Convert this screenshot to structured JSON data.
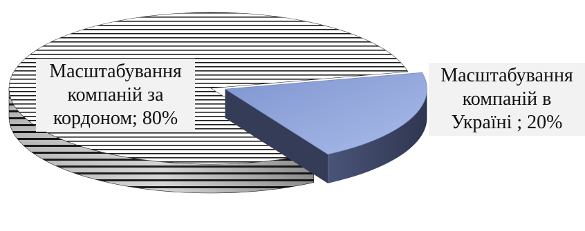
{
  "chart_data": {
    "type": "pie",
    "title": "",
    "style": "3d-exploded",
    "slices": [
      {
        "label_lines": [
          "Масштабування",
          "компаній за",
          "кордоном; 80%"
        ],
        "value": 80,
        "fill": "horizontal-stripes",
        "colors": {
          "top_stripe": "#1a1a1a",
          "top_bg": "#ffffff",
          "side": "#7a7a7a"
        }
      },
      {
        "label_lines": [
          "Масштабування",
          "компаній в",
          "Україні ; 20%"
        ],
        "value": 20,
        "fill": "solid",
        "exploded": true,
        "colors": {
          "top": "#97abe0",
          "side": "#3f4866"
        }
      }
    ],
    "legend": "none"
  }
}
